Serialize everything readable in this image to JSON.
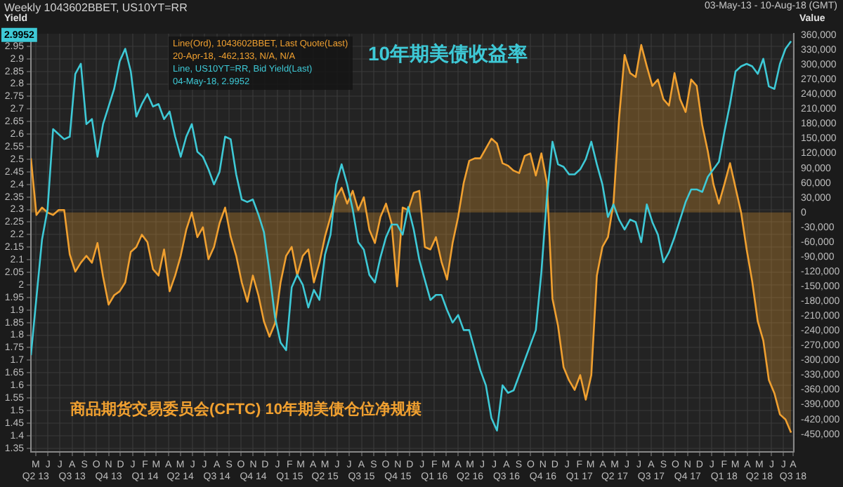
{
  "chart_data": {
    "type": "line",
    "title": "Weekly 1043602BBET, US10YT=RR",
    "subtitle": "03-May-13 - 10-Aug-18 (GMT)",
    "ylabel": "Yield",
    "y2label": "Value",
    "annotations": [
      "Line(Ord), 1043602BBET, Last Quote(Last)",
      "20-Apr-18, -462,133, N/A, N/A",
      "Line, US10YT=RR, Bid Yield(Last)",
      "04-May-18, 2.9952",
      {
        "text": "2.9952",
        "y": 2.9952
      }
    ],
    "x": [
      "2013-05-03",
      "2013-05-17",
      "2013-05-31",
      "2013-06-14",
      "2013-06-28",
      "2013-07-12",
      "2013-07-26",
      "2013-08-09",
      "2013-08-23",
      "2013-09-06",
      "2013-09-20",
      "2013-10-04",
      "2013-10-18",
      "2013-11-01",
      "2013-11-15",
      "2013-11-29",
      "2013-12-13",
      "2013-12-27",
      "2014-01-10",
      "2014-01-24",
      "2014-02-07",
      "2014-02-21",
      "2014-03-07",
      "2014-03-21",
      "2014-04-04",
      "2014-04-18",
      "2014-05-02",
      "2014-05-16",
      "2014-05-30",
      "2014-06-13",
      "2014-06-27",
      "2014-07-11",
      "2014-07-25",
      "2014-08-08",
      "2014-08-22",
      "2014-09-05",
      "2014-09-19",
      "2014-10-03",
      "2014-10-17",
      "2014-10-31",
      "2014-11-14",
      "2014-11-28",
      "2014-12-12",
      "2014-12-26",
      "2015-01-09",
      "2015-01-23",
      "2015-02-06",
      "2015-02-20",
      "2015-03-06",
      "2015-03-20",
      "2015-04-03",
      "2015-04-17",
      "2015-05-01",
      "2015-05-15",
      "2015-05-29",
      "2015-06-12",
      "2015-06-26",
      "2015-07-10",
      "2015-07-24",
      "2015-08-07",
      "2015-08-21",
      "2015-09-04",
      "2015-09-18",
      "2015-10-02",
      "2015-10-16",
      "2015-10-30",
      "2015-11-13",
      "2015-11-27",
      "2015-12-11",
      "2015-12-25",
      "2016-01-08",
      "2016-01-22",
      "2016-02-05",
      "2016-02-19",
      "2016-03-04",
      "2016-03-18",
      "2016-04-01",
      "2016-04-15",
      "2016-04-29",
      "2016-05-13",
      "2016-05-27",
      "2016-06-10",
      "2016-06-24",
      "2016-07-08",
      "2016-07-22",
      "2016-08-05",
      "2016-08-19",
      "2016-09-02",
      "2016-09-16",
      "2016-09-30",
      "2016-10-14",
      "2016-10-28",
      "2016-11-11",
      "2016-11-25",
      "2016-12-09",
      "2016-12-23",
      "2017-01-06",
      "2017-01-20",
      "2017-02-03",
      "2017-02-17",
      "2017-03-03",
      "2017-03-17",
      "2017-03-31",
      "2017-04-14",
      "2017-04-28",
      "2017-05-12",
      "2017-05-26",
      "2017-06-09",
      "2017-06-23",
      "2017-07-07",
      "2017-07-21",
      "2017-08-04",
      "2017-08-18",
      "2017-09-01",
      "2017-09-15",
      "2017-09-29",
      "2017-10-13",
      "2017-10-27",
      "2017-11-10",
      "2017-11-24",
      "2017-12-08",
      "2017-12-22",
      "2018-01-05",
      "2018-01-19",
      "2018-02-02",
      "2018-02-16",
      "2018-03-02",
      "2018-03-16",
      "2018-03-30",
      "2018-04-13",
      "2018-04-27",
      "2018-05-11",
      "2018-05-25",
      "2018-06-08",
      "2018-06-22",
      "2018-07-06",
      "2018-07-20",
      "2018-08-03"
    ],
    "series": [
      {
        "name": "商品期货交易委员会(CFTC) 10年期美债仓位净规模",
        "type": "area",
        "axis": "y2",
        "color": "#f0a030",
        "values": [
          110000,
          -5000,
          10000,
          0,
          -5000,
          5000,
          5000,
          -85000,
          -120000,
          -102000,
          -88000,
          -102000,
          -62000,
          -130000,
          -187000,
          -168000,
          -160000,
          -142000,
          -80000,
          -70000,
          -45000,
          -60000,
          -115000,
          -128000,
          -75000,
          -160000,
          -128000,
          -88000,
          -35000,
          0,
          -50000,
          -30000,
          -95000,
          -70000,
          -22000,
          10000,
          -49000,
          -88000,
          -142000,
          -181000,
          -128000,
          -168000,
          -221000,
          -252000,
          -225000,
          -142000,
          -88000,
          -70000,
          -128000,
          -88000,
          -75000,
          -142000,
          -102000,
          -49000,
          -9000,
          31000,
          50000,
          18000,
          44000,
          5000,
          31000,
          -35000,
          -62000,
          -9000,
          18000,
          -22000,
          -150000,
          10000,
          5000,
          40000,
          44000,
          -70000,
          -75000,
          -50000,
          -100000,
          -136000,
          -62000,
          -9000,
          60000,
          105000,
          110000,
          110000,
          130000,
          150000,
          140000,
          100000,
          95000,
          85000,
          80000,
          115000,
          120000,
          75000,
          120000,
          60000,
          -175000,
          -230000,
          -314000,
          -341000,
          -360000,
          -330000,
          -380000,
          -330000,
          -128000,
          -70000,
          -50000,
          20000,
          190000,
          320000,
          283000,
          275000,
          340000,
          297000,
          257000,
          270000,
          230000,
          217000,
          283000,
          230000,
          204000,
          270000,
          257000,
          177000,
          124000,
          58000,
          18000,
          58000,
          100000,
          50000,
          0,
          -75000,
          -140000,
          -221000,
          -260000,
          -340000,
          -367000,
          -410000,
          -420000,
          -447000
        ]
      },
      {
        "name": "10年期美债收益率",
        "axis": "y",
        "color": "#3ec9d6",
        "values": [
          1.72,
          1.95,
          2.18,
          2.3,
          2.62,
          2.6,
          2.58,
          2.59,
          2.84,
          2.88,
          2.64,
          2.66,
          2.51,
          2.64,
          2.71,
          2.78,
          2.89,
          2.94,
          2.85,
          2.67,
          2.72,
          2.76,
          2.71,
          2.72,
          2.66,
          2.69,
          2.59,
          2.51,
          2.59,
          2.64,
          2.53,
          2.51,
          2.46,
          2.4,
          2.45,
          2.59,
          2.58,
          2.44,
          2.34,
          2.33,
          2.34,
          2.28,
          2.21,
          2.05,
          1.87,
          1.77,
          1.74,
          1.99,
          2.04,
          2.0,
          1.91,
          1.98,
          1.94,
          2.12,
          2.2,
          2.4,
          2.48,
          2.4,
          2.3,
          2.17,
          2.14,
          2.04,
          2.01,
          2.11,
          2.19,
          2.24,
          2.24,
          2.2,
          2.31,
          2.22,
          2.1,
          2.02,
          1.94,
          1.96,
          1.96,
          1.9,
          1.85,
          1.88,
          1.82,
          1.82,
          1.74,
          1.66,
          1.6,
          1.47,
          1.42,
          1.6,
          1.57,
          1.58,
          1.64,
          1.7,
          1.76,
          1.82,
          2.05,
          2.35,
          2.57,
          2.48,
          2.47,
          2.44,
          2.44,
          2.46,
          2.5,
          2.57,
          2.48,
          2.4,
          2.27,
          2.32,
          2.26,
          2.22,
          2.26,
          2.25,
          2.17,
          2.32,
          2.25,
          2.2,
          2.09,
          2.13,
          2.19,
          2.26,
          2.33,
          2.38,
          2.38,
          2.37,
          2.43,
          2.46,
          2.49,
          2.61,
          2.72,
          2.85,
          2.87,
          2.88,
          2.87,
          2.84,
          2.9,
          2.79,
          2.78,
          2.88,
          2.94,
          2.97
        ]
      }
    ],
    "xlim": [
      "2013-05-03",
      "2018-08-10"
    ],
    "xticks": [
      {
        "value": "2013-05-15",
        "label": "M\nQ2 13"
      },
      {
        "value": "2013-06-15",
        "label": "J"
      },
      {
        "value": "2013-07-15",
        "label": "J"
      },
      {
        "value": "2013-08-15",
        "label": "A\nQ3 13"
      },
      {
        "value": "2013-09-15",
        "label": "S"
      },
      {
        "value": "2013-10-15",
        "label": "O"
      },
      {
        "value": "2013-11-15",
        "label": "N\nQ4 13"
      },
      {
        "value": "2013-12-15",
        "label": "D"
      },
      {
        "value": "2014-01-15",
        "label": "J"
      },
      {
        "value": "2014-02-15",
        "label": "F\nQ1 14"
      },
      {
        "value": "2014-03-15",
        "label": "M"
      },
      {
        "value": "2014-04-15",
        "label": "A"
      },
      {
        "value": "2014-05-15",
        "label": "M\nQ2 14"
      },
      {
        "value": "2014-06-15",
        "label": "J"
      },
      {
        "value": "2014-07-15",
        "label": "J"
      },
      {
        "value": "2014-08-15",
        "label": "A\nQ3 14"
      },
      {
        "value": "2014-09-15",
        "label": "S"
      },
      {
        "value": "2014-10-15",
        "label": "O"
      },
      {
        "value": "2014-11-15",
        "label": "N\nQ4 14"
      },
      {
        "value": "2014-12-15",
        "label": "D"
      },
      {
        "value": "2015-01-15",
        "label": "J"
      },
      {
        "value": "2015-02-15",
        "label": "F\nQ1 15"
      },
      {
        "value": "2015-03-15",
        "label": "M"
      },
      {
        "value": "2015-04-15",
        "label": "A"
      },
      {
        "value": "2015-05-15",
        "label": "M\nQ2 15"
      },
      {
        "value": "2015-06-15",
        "label": "J"
      },
      {
        "value": "2015-07-15",
        "label": "J"
      },
      {
        "value": "2015-08-15",
        "label": "A\nQ3 15"
      },
      {
        "value": "2015-09-15",
        "label": "S"
      },
      {
        "value": "2015-10-15",
        "label": "O"
      },
      {
        "value": "2015-11-15",
        "label": "N\nQ4 15"
      },
      {
        "value": "2015-12-15",
        "label": "D"
      },
      {
        "value": "2016-01-15",
        "label": "J"
      },
      {
        "value": "2016-02-15",
        "label": "F\nQ1 16"
      },
      {
        "value": "2016-03-15",
        "label": "M"
      },
      {
        "value": "2016-04-15",
        "label": "A"
      },
      {
        "value": "2016-05-15",
        "label": "M\nQ2 16"
      },
      {
        "value": "2016-06-15",
        "label": "J"
      },
      {
        "value": "2016-07-15",
        "label": "J"
      },
      {
        "value": "2016-08-15",
        "label": "A\nQ3 16"
      },
      {
        "value": "2016-09-15",
        "label": "S"
      },
      {
        "value": "2016-10-15",
        "label": "O"
      },
      {
        "value": "2016-11-15",
        "label": "N\nQ4 16"
      },
      {
        "value": "2016-12-15",
        "label": "D"
      },
      {
        "value": "2017-01-15",
        "label": "J"
      },
      {
        "value": "2017-02-15",
        "label": "F\nQ1 17"
      },
      {
        "value": "2017-03-15",
        "label": "M"
      },
      {
        "value": "2017-04-15",
        "label": "A"
      },
      {
        "value": "2017-05-15",
        "label": "M\nQ2 17"
      },
      {
        "value": "2017-06-15",
        "label": "J"
      },
      {
        "value": "2017-07-15",
        "label": "J"
      },
      {
        "value": "2017-08-15",
        "label": "A\nQ3 17"
      },
      {
        "value": "2017-09-15",
        "label": "S"
      },
      {
        "value": "2017-10-15",
        "label": "O"
      },
      {
        "value": "2017-11-15",
        "label": "N\nQ4 17"
      },
      {
        "value": "2017-12-15",
        "label": "D"
      },
      {
        "value": "2018-01-15",
        "label": "J"
      },
      {
        "value": "2018-02-15",
        "label": "F\nQ1 18"
      },
      {
        "value": "2018-03-15",
        "label": "M"
      },
      {
        "value": "2018-04-15",
        "label": "A"
      },
      {
        "value": "2018-05-15",
        "label": "M\nQ2 18"
      },
      {
        "value": "2018-06-15",
        "label": "J"
      },
      {
        "value": "2018-07-15",
        "label": "J"
      },
      {
        "value": "2018-08-08",
        "label": "A\nQ3 18"
      }
    ],
    "ylim": [
      1.335,
      3.0
    ],
    "yticks": [
      1.35,
      1.4,
      1.45,
      1.5,
      1.55,
      1.6,
      1.65,
      1.7,
      1.75,
      1.8,
      1.85,
      1.9,
      1.95,
      2,
      2.05,
      2.1,
      2.15,
      2.2,
      2.25,
      2.3,
      2.35,
      2.4,
      2.45,
      2.5,
      2.55,
      2.6,
      2.65,
      2.7,
      2.75,
      2.8,
      2.85,
      2.9,
      2.95
    ],
    "y2lim": [
      -486000,
      363000
    ],
    "y2ticks": [
      {
        "value": -450000,
        "label": "-450,000"
      },
      {
        "value": -420000,
        "label": "-420,000"
      },
      {
        "value": -390000,
        "label": "-390,000"
      },
      {
        "value": -360000,
        "label": "-360,000"
      },
      {
        "value": -330000,
        "label": "-330,000"
      },
      {
        "value": -300000,
        "label": "-300,000"
      },
      {
        "value": -270000,
        "label": "-270,000"
      },
      {
        "value": -240000,
        "label": "-240,000"
      },
      {
        "value": -210000,
        "label": "-210,000"
      },
      {
        "value": -180000,
        "label": "-180,000"
      },
      {
        "value": -150000,
        "label": "-150,000"
      },
      {
        "value": -120000,
        "label": "-120,000"
      },
      {
        "value": -90000,
        "label": "-90,000"
      },
      {
        "value": -60000,
        "label": "-60,000"
      },
      {
        "value": -30000,
        "label": "-30,000"
      },
      0,
      {
        "value": 30000,
        "label": "30,000"
      },
      {
        "value": 60000,
        "label": "60,000"
      },
      {
        "value": 90000,
        "label": "90,000"
      },
      {
        "value": 120000,
        "label": "120,000"
      },
      {
        "value": 150000,
        "label": "150,000"
      },
      {
        "value": 180000,
        "label": "180,000"
      },
      {
        "value": 210000,
        "label": "210,000"
      },
      {
        "value": 240000,
        "label": "240,000"
      },
      {
        "value": 270000,
        "label": "270,000"
      },
      {
        "value": 300000,
        "label": "300,000"
      },
      {
        "value": 330000,
        "label": "330,000"
      },
      {
        "value": 360000,
        "label": "360,000"
      }
    ],
    "grid": true,
    "marker": "none"
  }
}
